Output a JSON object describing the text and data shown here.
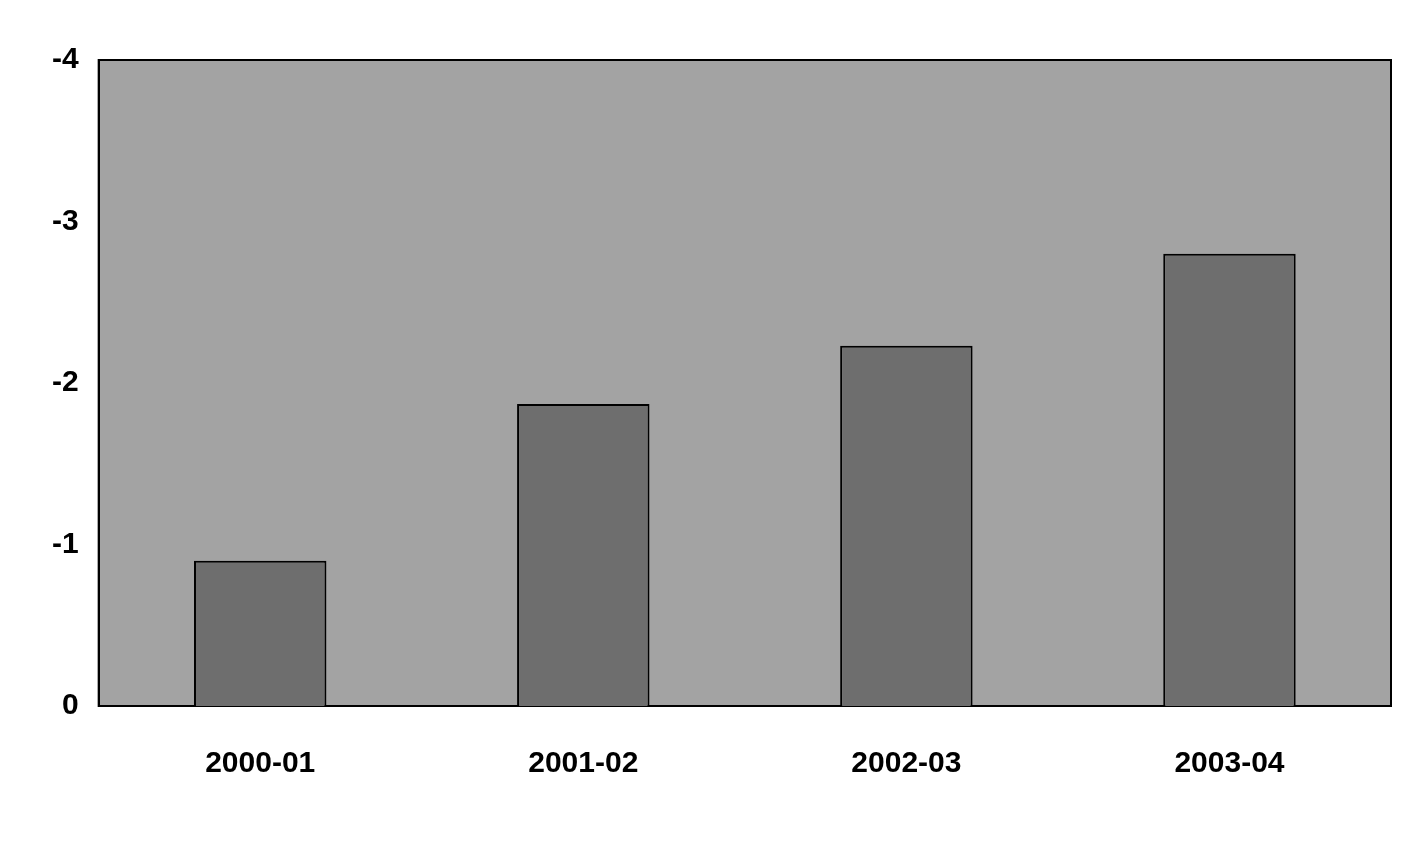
{
  "chart_data": {
    "type": "bar",
    "categories": [
      "2000-01",
      "2001-02",
      "2002-03",
      "2003-04"
    ],
    "values": [
      -0.9,
      -1.87,
      -2.23,
      -2.8
    ],
    "color": "#6e6e6e",
    "ylim": [
      0,
      -4
    ],
    "yticks": [
      0,
      -1,
      -2,
      -3,
      -4
    ],
    "grid": false,
    "legend": false
  }
}
